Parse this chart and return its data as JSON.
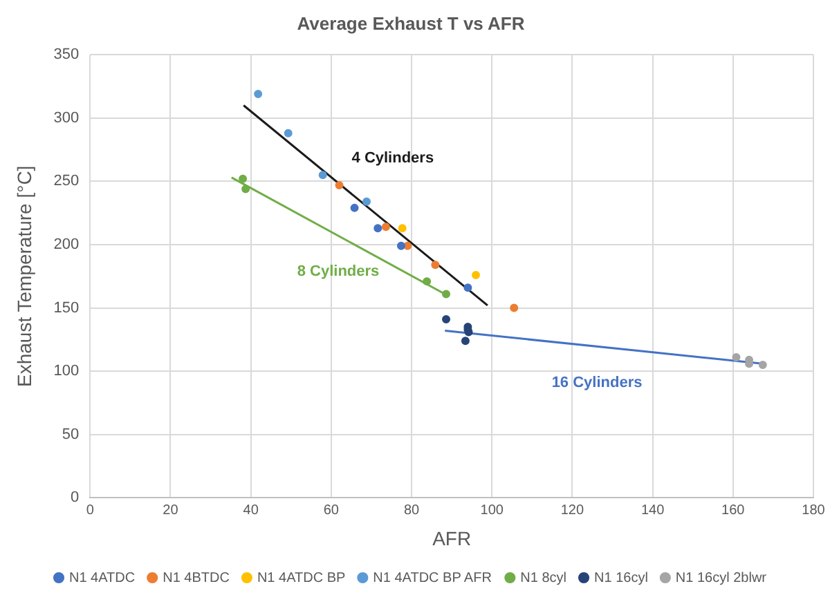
{
  "chart_data": {
    "type": "scatter",
    "title": "Average Exhaust T vs AFR",
    "xlabel": "AFR",
    "ylabel": "Exhaust Temperature [°C]",
    "xlim": [
      0,
      180
    ],
    "xticks": [
      0,
      20,
      40,
      60,
      80,
      100,
      120,
      140,
      160,
      180
    ],
    "ylim": [
      0,
      350
    ],
    "yticks": [
      0,
      50,
      100,
      150,
      200,
      250,
      300,
      350
    ],
    "grid": true,
    "legend": "bottom",
    "marker": "circle",
    "series": [
      {
        "name": "N1 4ATDC",
        "color": "#4472c4",
        "x": [
          65.8,
          71.6,
          77.4,
          94
        ],
        "values": [
          229,
          213,
          199,
          166
        ]
      },
      {
        "name": "N1 4BTDC",
        "color": "#ed7d31",
        "x": [
          62,
          73.6,
          79,
          85.9,
          105.5
        ],
        "values": [
          247,
          214,
          199,
          184,
          150
        ]
      },
      {
        "name": "N1 4ATDC BP",
        "color": "#ffc000",
        "x": [
          77.7,
          96
        ],
        "values": [
          213,
          176
        ]
      },
      {
        "name": "N1 4ATDC BP AFR",
        "color": "#5b9bd5",
        "x": [
          41.8,
          49.3,
          57.9,
          68.8
        ],
        "values": [
          319,
          288,
          255,
          234
        ]
      },
      {
        "name": "N1 8cyl",
        "color": "#70ad47",
        "x": [
          38,
          38.7,
          83.8,
          88.6
        ],
        "values": [
          252,
          244,
          171,
          161
        ]
      },
      {
        "name": "N1 16cyl",
        "color": "#264478",
        "x": [
          88.6,
          94,
          94,
          94.2,
          93.4
        ],
        "values": [
          141,
          135,
          133,
          131,
          124
        ]
      },
      {
        "name": "N1 16cyl 2blwr",
        "color": "#a5a5a5",
        "x": [
          160.8,
          164,
          164,
          167.4
        ],
        "values": [
          111,
          109,
          106,
          105
        ]
      },
      {
        "type": "line",
        "marker": "none",
        "color": "#1a1a1a",
        "x": [
          38.2,
          98.9
        ],
        "values": [
          310,
          152
        ]
      },
      {
        "type": "line",
        "marker": "none",
        "color": "#70ad47",
        "x": [
          35.2,
          88.3
        ],
        "values": [
          253,
          161
        ]
      },
      {
        "type": "line",
        "marker": "none",
        "color": "#4472c4",
        "x": [
          88.3,
          167.4
        ],
        "values": [
          132,
          106
        ]
      }
    ],
    "annotations": [
      "4 Cylinders",
      "8 Cylinders",
      "16 Cylinders"
    ]
  }
}
